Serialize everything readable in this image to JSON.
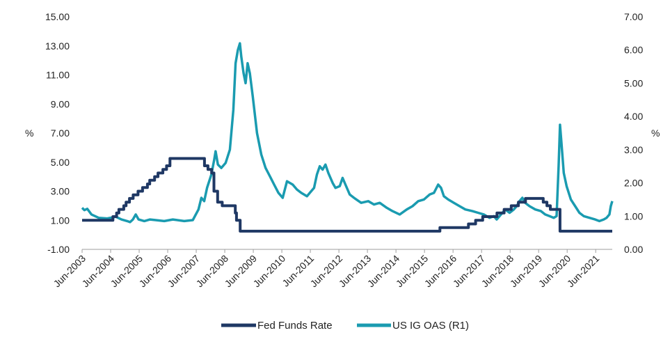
{
  "chart_data": {
    "type": "line",
    "title": "",
    "x_labels": [
      "Jun-2003",
      "Jun-2004",
      "Jun-2005",
      "Jun-2006",
      "Jun-2007",
      "Jun-2008",
      "Jun-2009",
      "Jun-2010",
      "Jun-2011",
      "Jun-2012",
      "Jun-2013",
      "Jun-2014",
      "Jun-2015",
      "Jun-2016",
      "Jun-2017",
      "Jun-2018",
      "Jun-2019",
      "Jun-2020",
      "Jun-2021"
    ],
    "x_range": [
      2003.42,
      2022.0
    ],
    "left_axis": {
      "label": "%",
      "ylim": [
        -1.0,
        15.0
      ],
      "ticks": [
        "15.00",
        "13.00",
        "11.00",
        "9.00",
        "7.00",
        "5.00",
        "3.00",
        "1.00",
        "-1.00"
      ],
      "tick_values": [
        15,
        13,
        11,
        9,
        7,
        5,
        3,
        1,
        -1
      ]
    },
    "right_axis": {
      "label": "%",
      "ylim": [
        0.0,
        7.0
      ],
      "ticks": [
        "7.00",
        "6.00",
        "5.00",
        "4.00",
        "3.00",
        "2.00",
        "1.00",
        "0.00"
      ],
      "tick_values": [
        7,
        6,
        5,
        4,
        3,
        2,
        1,
        0
      ]
    },
    "series": [
      {
        "name": "Fed Funds Rate",
        "axis": "left",
        "color": "#1f3864",
        "step": true,
        "points": [
          [
            2003.42,
            1.0
          ],
          [
            2004.5,
            1.25
          ],
          [
            2004.63,
            1.5
          ],
          [
            2004.71,
            1.75
          ],
          [
            2004.88,
            2.0
          ],
          [
            2004.96,
            2.25
          ],
          [
            2005.08,
            2.5
          ],
          [
            2005.21,
            2.75
          ],
          [
            2005.38,
            3.0
          ],
          [
            2005.54,
            3.25
          ],
          [
            2005.71,
            3.5
          ],
          [
            2005.79,
            3.75
          ],
          [
            2005.96,
            4.0
          ],
          [
            2006.08,
            4.25
          ],
          [
            2006.25,
            4.5
          ],
          [
            2006.38,
            4.75
          ],
          [
            2006.5,
            5.25
          ],
          [
            2007.71,
            4.75
          ],
          [
            2007.83,
            4.5
          ],
          [
            2007.96,
            4.25
          ],
          [
            2008.04,
            3.0
          ],
          [
            2008.17,
            2.25
          ],
          [
            2008.33,
            2.0
          ],
          [
            2008.79,
            1.5
          ],
          [
            2008.83,
            1.0
          ],
          [
            2008.96,
            0.25
          ],
          [
            2015.96,
            0.5
          ],
          [
            2016.96,
            0.75
          ],
          [
            2017.21,
            1.0
          ],
          [
            2017.46,
            1.25
          ],
          [
            2017.96,
            1.5
          ],
          [
            2018.21,
            1.75
          ],
          [
            2018.46,
            2.0
          ],
          [
            2018.71,
            2.25
          ],
          [
            2018.96,
            2.5
          ],
          [
            2019.58,
            2.25
          ],
          [
            2019.71,
            2.0
          ],
          [
            2019.83,
            1.75
          ],
          [
            2020.17,
            0.25
          ],
          [
            2022.0,
            0.25
          ]
        ]
      },
      {
        "name": "US IG OAS (R1)",
        "axis": "right",
        "color": "#1a9bb0",
        "step": false,
        "points": [
          [
            2003.42,
            1.25
          ],
          [
            2003.5,
            1.18
          ],
          [
            2003.6,
            1.22
          ],
          [
            2003.75,
            1.05
          ],
          [
            2004.0,
            0.95
          ],
          [
            2004.3,
            0.93
          ],
          [
            2004.6,
            0.98
          ],
          [
            2004.8,
            0.9
          ],
          [
            2005.0,
            0.85
          ],
          [
            2005.1,
            0.82
          ],
          [
            2005.2,
            0.9
          ],
          [
            2005.3,
            1.05
          ],
          [
            2005.4,
            0.9
          ],
          [
            2005.6,
            0.85
          ],
          [
            2005.8,
            0.9
          ],
          [
            2006.0,
            0.88
          ],
          [
            2006.3,
            0.85
          ],
          [
            2006.6,
            0.9
          ],
          [
            2007.0,
            0.85
          ],
          [
            2007.3,
            0.88
          ],
          [
            2007.5,
            1.2
          ],
          [
            2007.6,
            1.55
          ],
          [
            2007.7,
            1.45
          ],
          [
            2007.8,
            1.85
          ],
          [
            2007.95,
            2.25
          ],
          [
            2008.05,
            2.7
          ],
          [
            2008.1,
            2.95
          ],
          [
            2008.18,
            2.55
          ],
          [
            2008.3,
            2.45
          ],
          [
            2008.45,
            2.6
          ],
          [
            2008.6,
            3.0
          ],
          [
            2008.72,
            4.2
          ],
          [
            2008.8,
            5.6
          ],
          [
            2008.88,
            6.0
          ],
          [
            2008.95,
            6.2
          ],
          [
            2009.0,
            5.8
          ],
          [
            2009.08,
            5.3
          ],
          [
            2009.15,
            5.0
          ],
          [
            2009.22,
            5.6
          ],
          [
            2009.3,
            5.3
          ],
          [
            2009.4,
            4.6
          ],
          [
            2009.55,
            3.5
          ],
          [
            2009.7,
            2.85
          ],
          [
            2009.85,
            2.45
          ],
          [
            2010.0,
            2.2
          ],
          [
            2010.15,
            1.95
          ],
          [
            2010.3,
            1.7
          ],
          [
            2010.45,
            1.55
          ],
          [
            2010.6,
            2.05
          ],
          [
            2010.8,
            1.95
          ],
          [
            2010.95,
            1.8
          ],
          [
            2011.1,
            1.7
          ],
          [
            2011.3,
            1.6
          ],
          [
            2011.45,
            1.75
          ],
          [
            2011.55,
            1.85
          ],
          [
            2011.65,
            2.25
          ],
          [
            2011.75,
            2.5
          ],
          [
            2011.85,
            2.4
          ],
          [
            2011.95,
            2.55
          ],
          [
            2012.05,
            2.3
          ],
          [
            2012.2,
            2.0
          ],
          [
            2012.3,
            1.85
          ],
          [
            2012.45,
            1.9
          ],
          [
            2012.55,
            2.15
          ],
          [
            2012.65,
            1.95
          ],
          [
            2012.8,
            1.65
          ],
          [
            2012.95,
            1.55
          ],
          [
            2013.2,
            1.4
          ],
          [
            2013.45,
            1.45
          ],
          [
            2013.65,
            1.35
          ],
          [
            2013.85,
            1.4
          ],
          [
            2014.1,
            1.25
          ],
          [
            2014.3,
            1.15
          ],
          [
            2014.55,
            1.05
          ],
          [
            2014.8,
            1.2
          ],
          [
            2015.0,
            1.3
          ],
          [
            2015.2,
            1.45
          ],
          [
            2015.4,
            1.5
          ],
          [
            2015.6,
            1.65
          ],
          [
            2015.75,
            1.7
          ],
          [
            2015.9,
            1.95
          ],
          [
            2016.0,
            1.85
          ],
          [
            2016.1,
            1.6
          ],
          [
            2016.25,
            1.5
          ],
          [
            2016.45,
            1.4
          ],
          [
            2016.65,
            1.3
          ],
          [
            2016.85,
            1.2
          ],
          [
            2017.1,
            1.15
          ],
          [
            2017.3,
            1.1
          ],
          [
            2017.5,
            1.05
          ],
          [
            2017.7,
            0.95
          ],
          [
            2017.85,
            1.0
          ],
          [
            2017.95,
            0.9
          ],
          [
            2018.1,
            1.05
          ],
          [
            2018.25,
            1.2
          ],
          [
            2018.4,
            1.1
          ],
          [
            2018.55,
            1.2
          ],
          [
            2018.65,
            1.3
          ],
          [
            2018.75,
            1.45
          ],
          [
            2018.85,
            1.55
          ],
          [
            2018.95,
            1.4
          ],
          [
            2019.1,
            1.3
          ],
          [
            2019.3,
            1.2
          ],
          [
            2019.5,
            1.15
          ],
          [
            2019.65,
            1.05
          ],
          [
            2019.8,
            1.0
          ],
          [
            2019.95,
            0.95
          ],
          [
            2020.05,
            1.0
          ],
          [
            2020.12,
            2.5
          ],
          [
            2020.17,
            3.75
          ],
          [
            2020.22,
            3.2
          ],
          [
            2020.3,
            2.3
          ],
          [
            2020.4,
            1.9
          ],
          [
            2020.55,
            1.5
          ],
          [
            2020.7,
            1.3
          ],
          [
            2020.85,
            1.1
          ],
          [
            2021.0,
            1.0
          ],
          [
            2021.2,
            0.95
          ],
          [
            2021.4,
            0.9
          ],
          [
            2021.55,
            0.85
          ],
          [
            2021.7,
            0.9
          ],
          [
            2021.8,
            0.95
          ],
          [
            2021.9,
            1.05
          ],
          [
            2021.95,
            1.3
          ],
          [
            2022.0,
            1.45
          ]
        ]
      }
    ],
    "legend": {
      "position": "bottom-center",
      "items": [
        {
          "label": "Fed Funds Rate",
          "color": "#1f3864"
        },
        {
          "label": "US IG OAS (R1)",
          "color": "#1a9bb0"
        }
      ]
    }
  }
}
